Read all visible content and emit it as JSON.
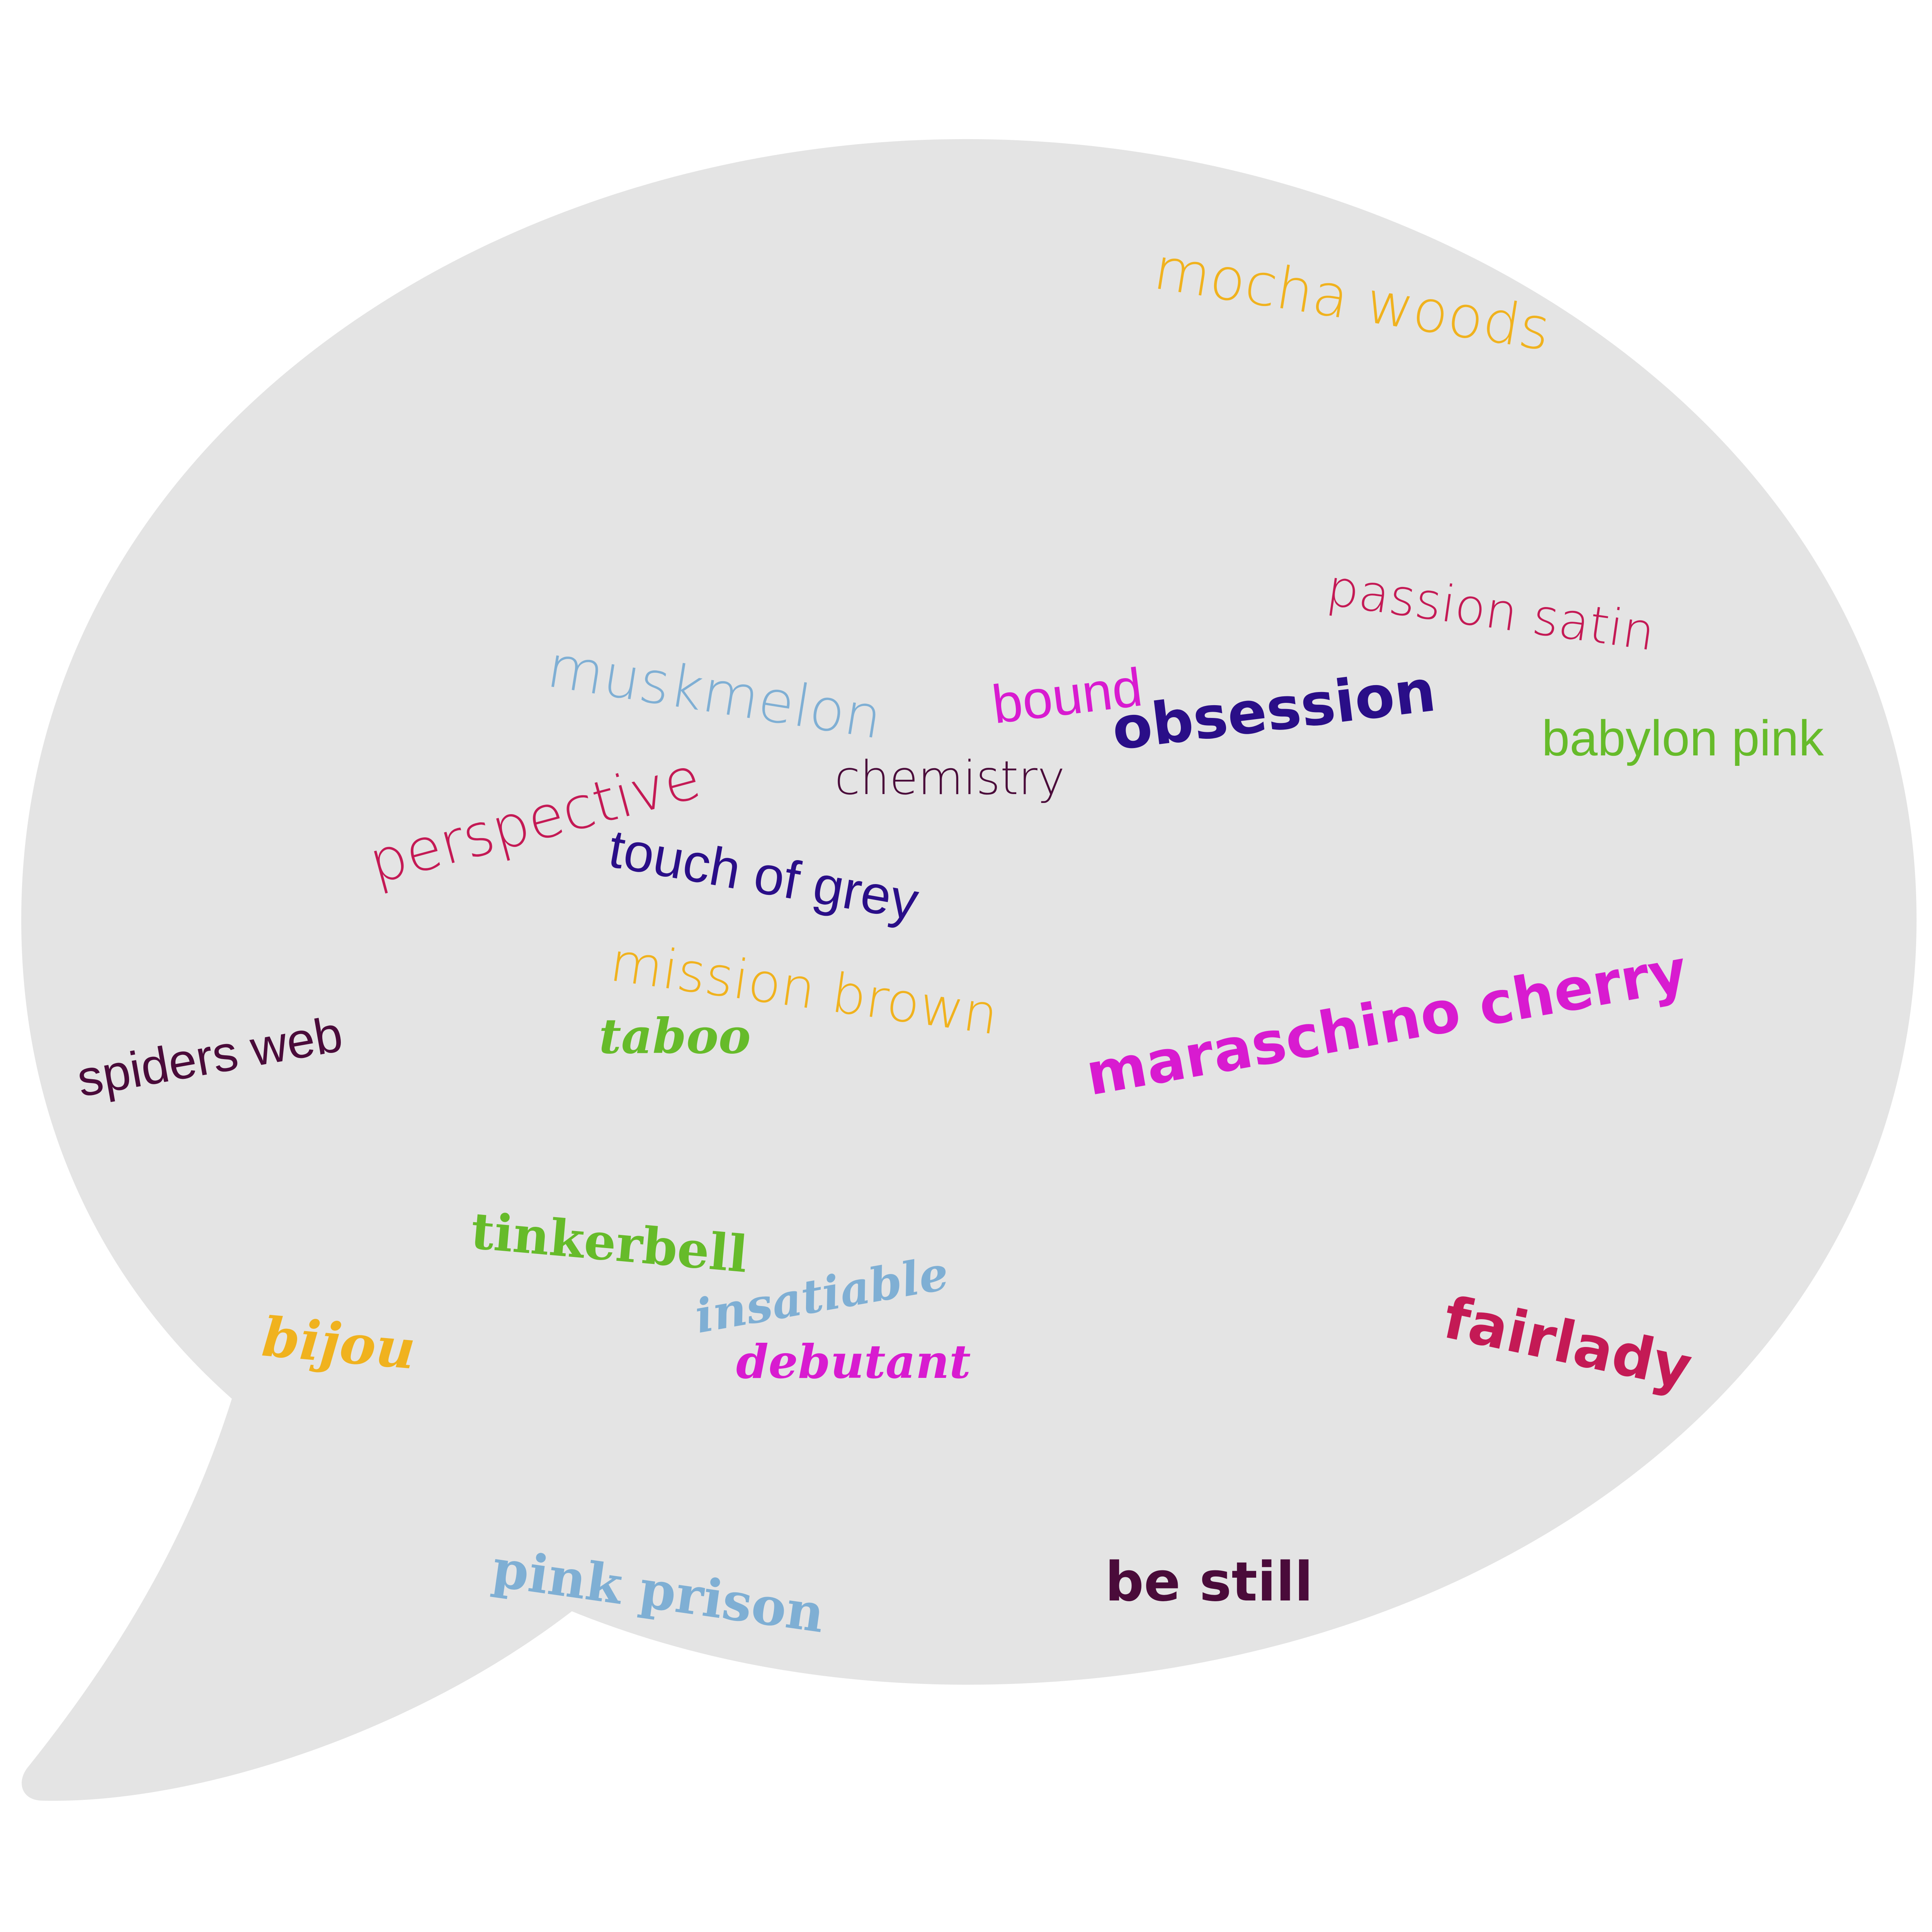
{
  "words": [
    {
      "id": "mocha-woods",
      "text": "mocha woods",
      "color": "#F0B21E"
    },
    {
      "id": "passion-satin",
      "text": "passion satin",
      "color": "#C41A55"
    },
    {
      "id": "muskmelon",
      "text": "muskmelon",
      "color": "#7FAFD4"
    },
    {
      "id": "bound",
      "text": "bound",
      "color": "#D81BD0"
    },
    {
      "id": "obsession",
      "text": "obsession",
      "color": "#2A0E88"
    },
    {
      "id": "babylon-pink",
      "text": "babylon pink",
      "color": "#66BB2A"
    },
    {
      "id": "chemistry",
      "text": "chemistry",
      "color": "#4A0B3A"
    },
    {
      "id": "perspective",
      "text": "perspective",
      "color": "#C41A55"
    },
    {
      "id": "touch-of-grey",
      "text": "touch of grey",
      "color": "#2A0E88"
    },
    {
      "id": "mission-brown",
      "text": "mission brown",
      "color": "#F0B21E"
    },
    {
      "id": "spiders-web",
      "text": "spiders web",
      "color": "#4A0B3A"
    },
    {
      "id": "taboo",
      "text": "taboo",
      "color": "#66BB2A"
    },
    {
      "id": "maraschino-cherry",
      "text": "maraschino cherry",
      "color": "#D81BD0"
    },
    {
      "id": "tinkerbell",
      "text": "tinkerbell",
      "color": "#66BB2A"
    },
    {
      "id": "insatiable",
      "text": "insatiable",
      "color": "#7FAFD4"
    },
    {
      "id": "bijou",
      "text": "bijou",
      "color": "#F0B21E"
    },
    {
      "id": "debutant",
      "text": "debutant",
      "color": "#D81BD0"
    },
    {
      "id": "fairlady",
      "text": "fairlady",
      "color": "#C41A55"
    },
    {
      "id": "pink-prison",
      "text": "pink prison",
      "color": "#7FAFD4"
    },
    {
      "id": "be-still",
      "text": "be still",
      "color": "#4A0B3A"
    }
  ],
  "bubble_color": "#E4E4E4"
}
